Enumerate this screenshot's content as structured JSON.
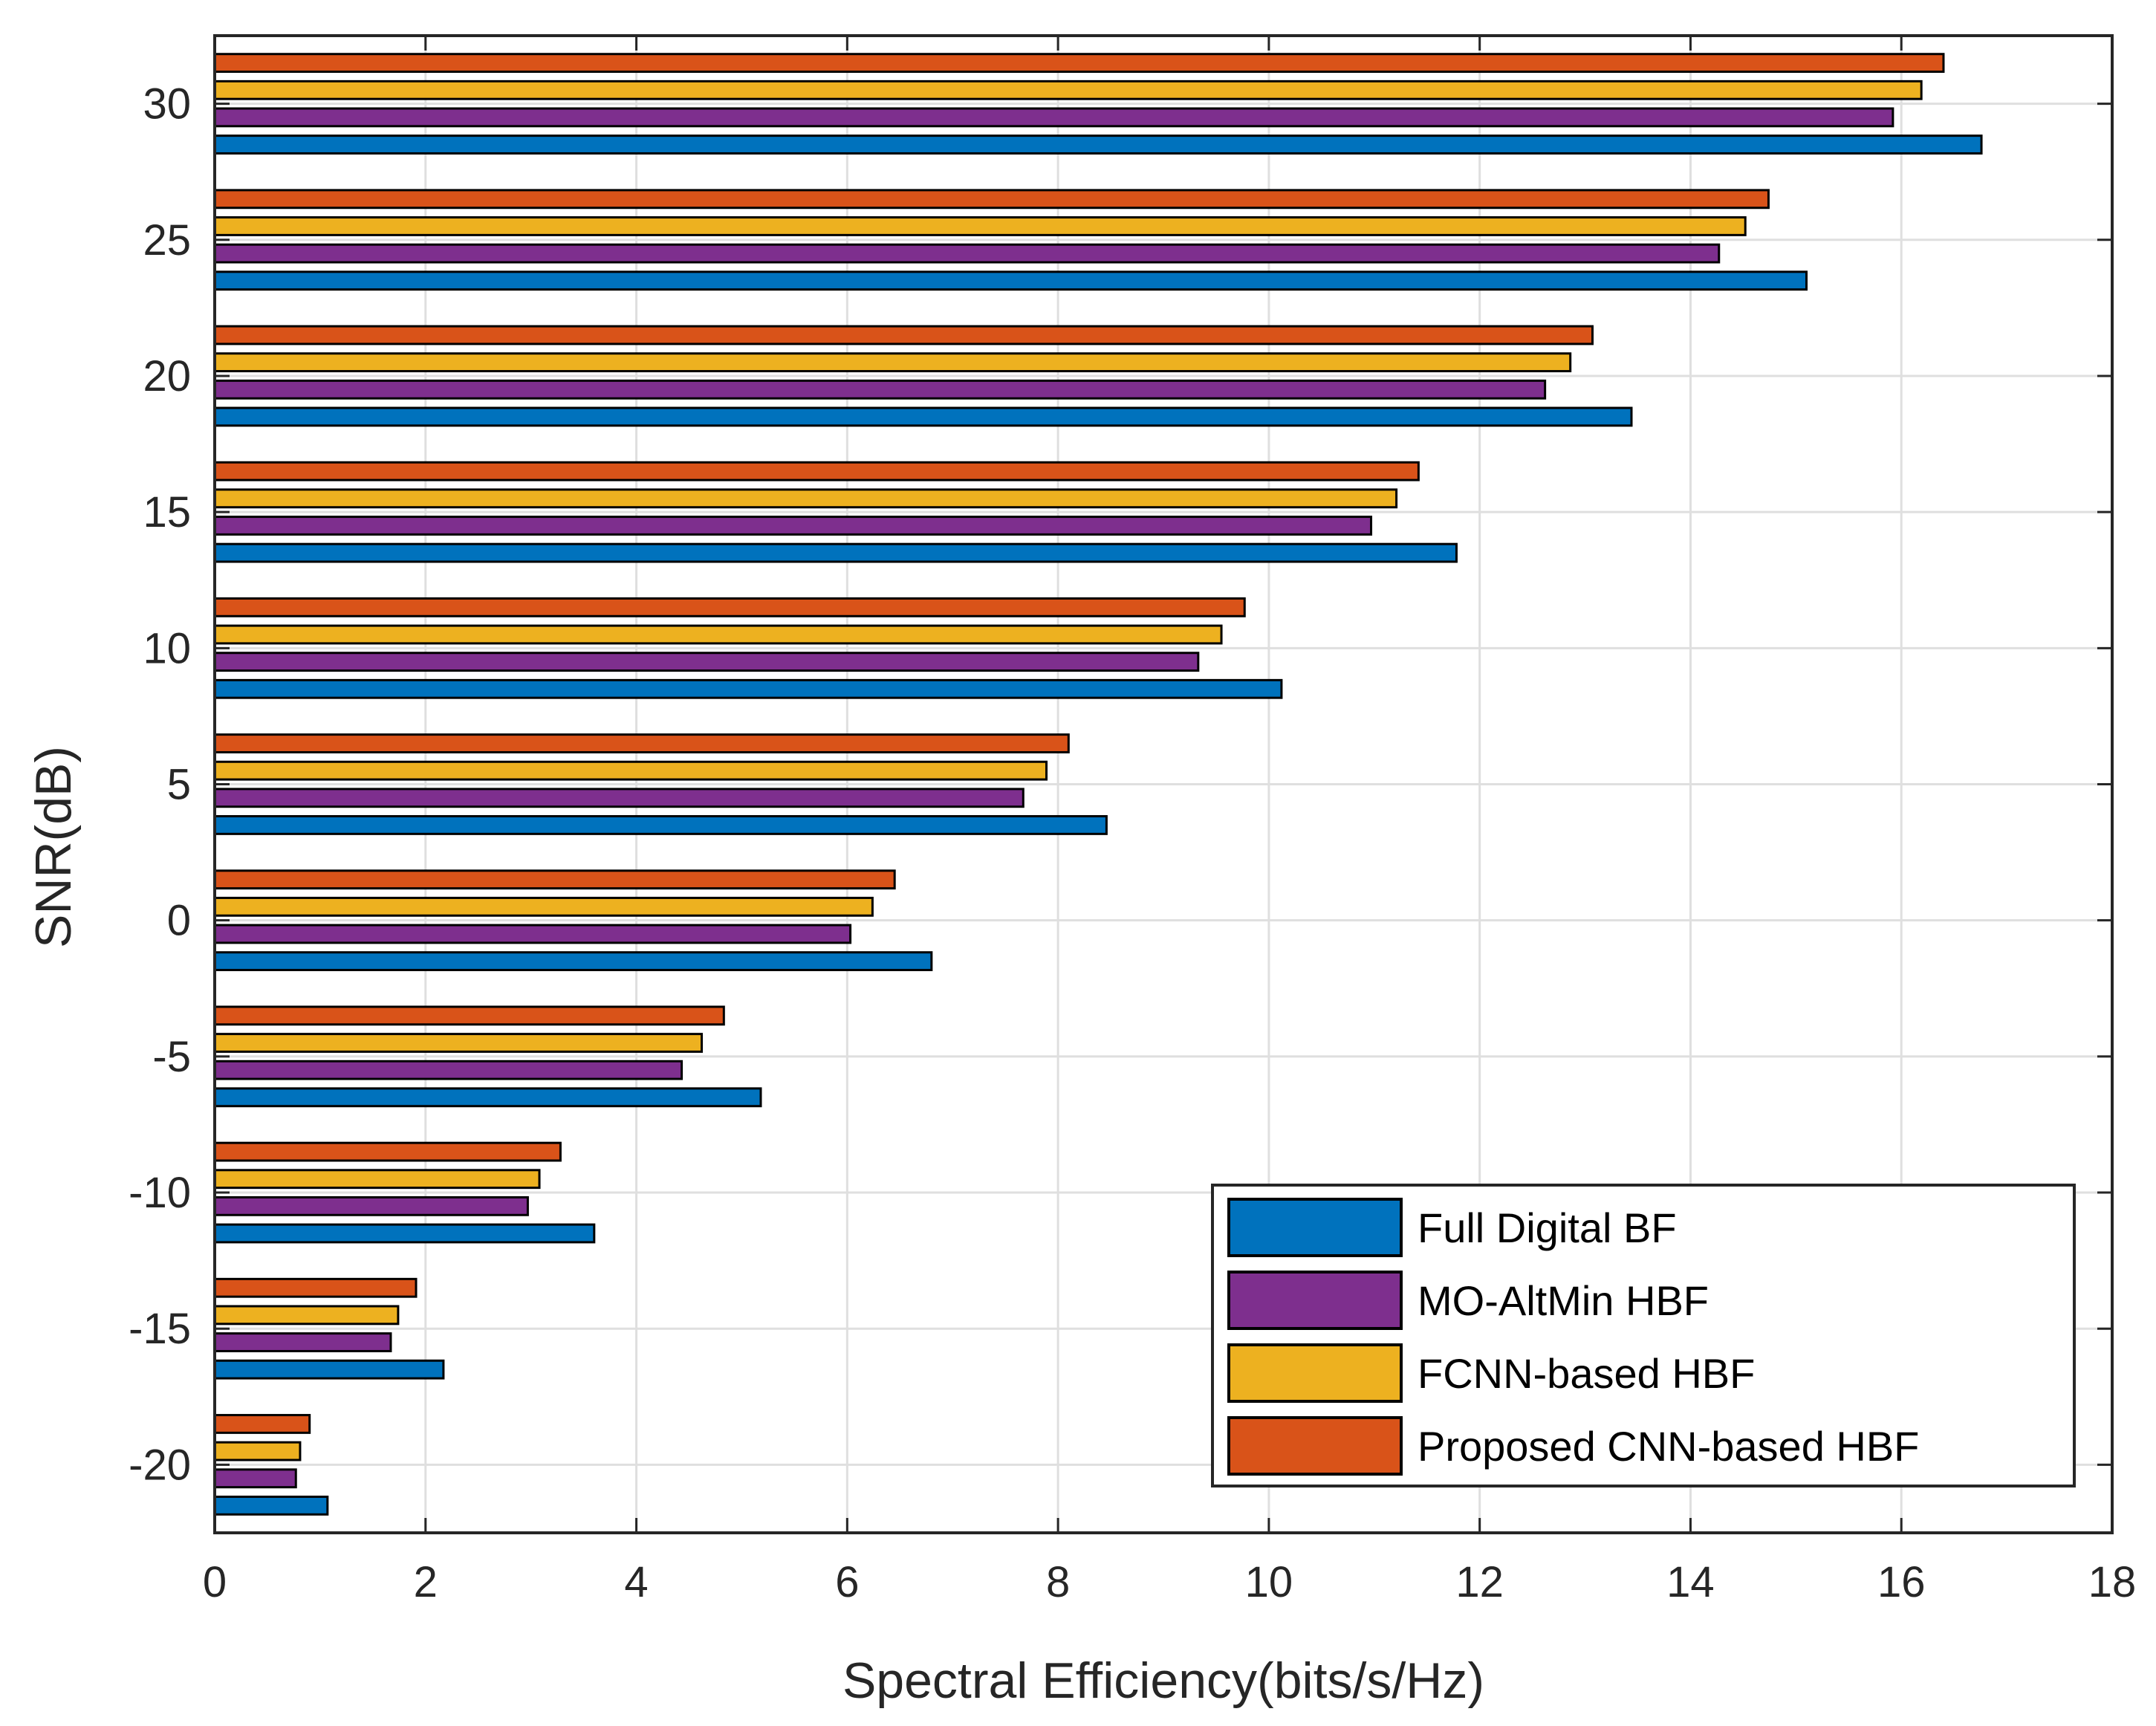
{
  "chart_data": {
    "type": "bar",
    "orientation": "horizontal",
    "xlabel": "Spectral Efficiency(bits/s/Hz)",
    "ylabel": "SNR(dB)",
    "xlim": [
      0,
      18
    ],
    "ylim": [
      -22.5,
      32.5
    ],
    "xticks": [
      0,
      2,
      4,
      6,
      8,
      10,
      12,
      14,
      16,
      18
    ],
    "yticks": [
      -20,
      -15,
      -10,
      -5,
      0,
      5,
      10,
      15,
      20,
      25,
      30
    ],
    "grid": true,
    "legend_position": "bottom-right",
    "categories": [
      -20,
      -15,
      -10,
      -5,
      0,
      5,
      10,
      15,
      20,
      25,
      30
    ],
    "series": [
      {
        "name": "Full Digital BF",
        "color": "#0072BD",
        "values": [
          1.07,
          2.17,
          3.6,
          5.18,
          6.8,
          8.46,
          10.12,
          11.78,
          13.44,
          15.1,
          16.76
        ]
      },
      {
        "name": "MO-AltMin HBF",
        "color": "#7E2F8E",
        "values": [
          0.77,
          1.67,
          2.97,
          4.43,
          6.03,
          7.67,
          9.33,
          10.97,
          12.62,
          14.27,
          15.92
        ]
      },
      {
        "name": "FCNN-based HBF",
        "color": "#EDB120",
        "values": [
          0.81,
          1.74,
          3.08,
          4.62,
          6.24,
          7.89,
          9.55,
          11.21,
          12.86,
          14.52,
          16.19
        ]
      },
      {
        "name": "Proposed CNN-based HBF",
        "color": "#D95319",
        "values": [
          0.9,
          1.91,
          3.28,
          4.83,
          6.45,
          8.1,
          9.77,
          11.42,
          13.07,
          14.74,
          16.4
        ]
      }
    ]
  }
}
